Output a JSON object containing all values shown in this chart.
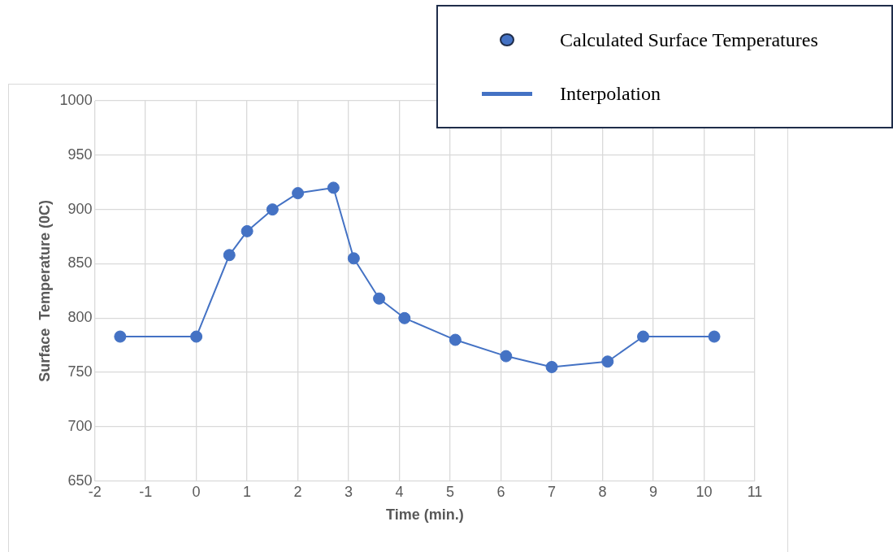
{
  "chart_data": {
    "type": "line",
    "xlabel": "Time (min.)",
    "ylabel": "Surface  Temperature (0C)",
    "xlim": [
      -2,
      11
    ],
    "xticks": [
      -2,
      -1,
      0,
      1,
      2,
      3,
      4,
      5,
      6,
      7,
      8,
      9,
      10,
      11
    ],
    "ylim": [
      650,
      1000
    ],
    "yticks": [
      650,
      700,
      750,
      800,
      850,
      900,
      950,
      1000
    ],
    "grid": true,
    "legend": "top right",
    "series": [
      {
        "name": "Calculated Surface Temperatures",
        "type": "scatter",
        "marker": "circle",
        "color": "#4472c4",
        "x": [
          -1.5,
          0,
          0.65,
          1,
          1.5,
          2,
          2.7,
          3.1,
          3.6,
          4.1,
          5.1,
          6.1,
          7,
          8.1,
          8.8,
          10.2
        ],
        "values": [
          783,
          783,
          858,
          880,
          900,
          915,
          920,
          855,
          818,
          800,
          780,
          765,
          755,
          760,
          783,
          783
        ]
      },
      {
        "name": "Interpolation",
        "type": "line",
        "marker": "none",
        "line_style": "solid",
        "color": "#4472c4",
        "x": [
          -1.5,
          0,
          0.65,
          1,
          1.5,
          2,
          2.7,
          3.1,
          3.6,
          4.1,
          5.1,
          6.1,
          7,
          8.1,
          8.8,
          10.2
        ],
        "values": [
          783,
          783,
          858,
          880,
          900,
          915,
          920,
          855,
          818,
          800,
          780,
          765,
          755,
          760,
          783,
          783
        ]
      }
    ]
  }
}
